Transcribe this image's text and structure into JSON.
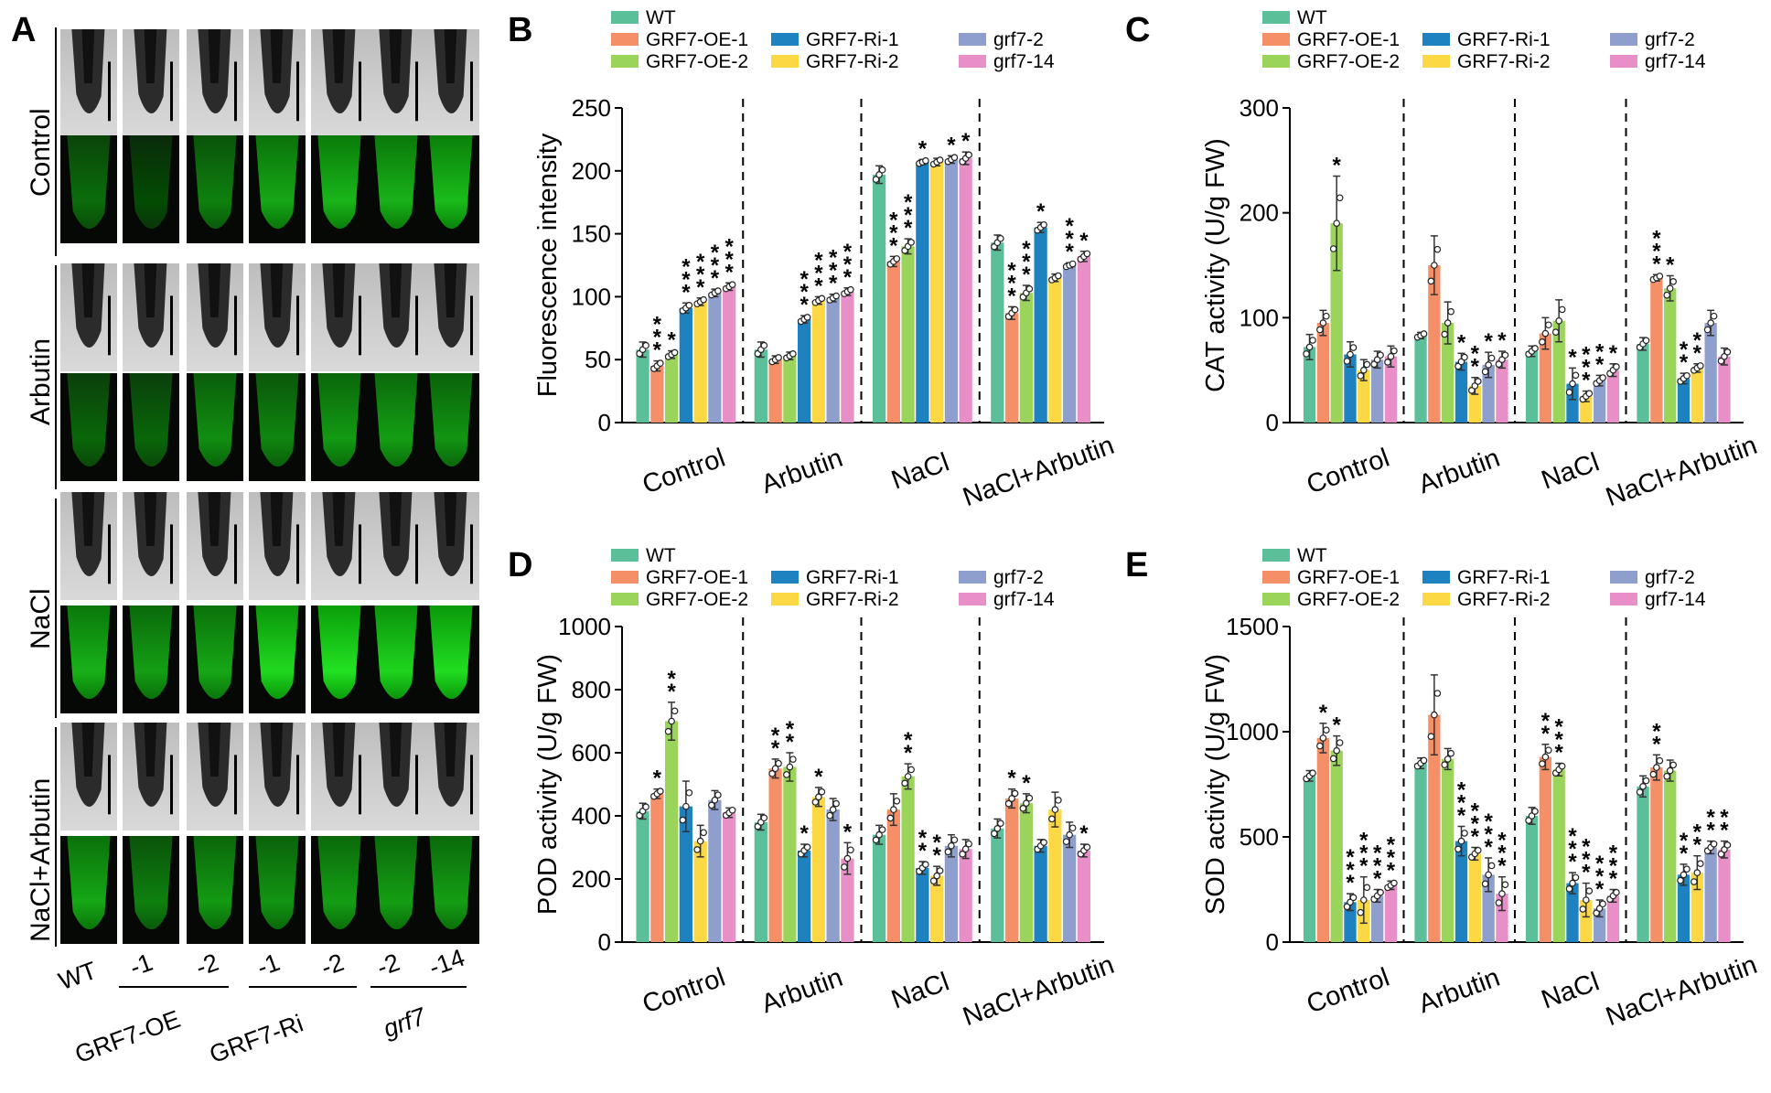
{
  "figure": {
    "panel_labels": [
      "A",
      "B",
      "C",
      "D",
      "E"
    ],
    "colors": {
      "WT": "#5bbf9a",
      "GRF7-OE-1": "#f58f67",
      "GRF7-OE-2": "#9bd45a",
      "GRF7-Ri-1": "#1f82c0",
      "GRF7-Ri-2": "#fbd844",
      "grf7-2": "#8e9fce",
      "grf7-14": "#e98fc7"
    }
  },
  "panelA": {
    "label": "A",
    "rows": [
      "Control",
      "Arbutin",
      "NaCl",
      "NaCl+Arbutin"
    ],
    "columns": {
      "WT": "WT",
      "sublabels": [
        "-1",
        "-2",
        "-1",
        "-2",
        "-2",
        "-14"
      ],
      "groups": [
        "GRF7-OE",
        "GRF7-Ri",
        "grf7"
      ]
    },
    "fluorescence_brightness": [
      [
        0.25,
        0.08,
        0.35,
        0.55,
        0.62,
        0.6,
        0.65
      ],
      [
        0.22,
        0.22,
        0.42,
        0.38,
        0.48,
        0.5,
        0.45
      ],
      [
        0.6,
        0.5,
        0.55,
        0.8,
        0.85,
        0.78,
        0.82
      ],
      [
        0.55,
        0.35,
        0.48,
        0.45,
        0.5,
        0.5,
        0.5
      ]
    ]
  },
  "chart_data": [
    {
      "id": "B",
      "type": "bar",
      "title": "",
      "ylabel": "Fluorescence intensity",
      "ylim": [
        0,
        250
      ],
      "yticks": [
        0,
        50,
        100,
        150,
        200,
        250
      ],
      "categories": [
        "Control",
        "Arbutin",
        "NaCl",
        "NaCl+Arbutin"
      ],
      "series": [
        {
          "name": "WT",
          "values": [
            58,
            58,
            197,
            143
          ],
          "errors": [
            6,
            6,
            7,
            6
          ],
          "sig": [
            "",
            "",
            "",
            ""
          ]
        },
        {
          "name": "GRF7-OE-1",
          "values": [
            45,
            50,
            128,
            87
          ],
          "errors": [
            4,
            3,
            4,
            5
          ],
          "sig": [
            "***",
            "",
            "***",
            "***"
          ]
        },
        {
          "name": "GRF7-OE-2",
          "values": [
            54,
            53,
            140,
            103
          ],
          "errors": [
            3,
            3,
            6,
            6
          ],
          "sig": [
            "*",
            "",
            "***",
            "***"
          ]
        },
        {
          "name": "GRF7-Ri-1",
          "values": [
            91,
            82,
            207,
            155
          ],
          "errors": [
            4,
            3,
            2,
            4
          ],
          "sig": [
            "***",
            "***",
            "*",
            "*"
          ]
        },
        {
          "name": "GRF7-Ri-2",
          "values": [
            96,
            97,
            207,
            115
          ],
          "errors": [
            3,
            3,
            3,
            3
          ],
          "sig": [
            "***",
            "***",
            "",
            ""
          ]
        },
        {
          "name": "grf7-2",
          "values": [
            103,
            99,
            209,
            125
          ],
          "errors": [
            3,
            3,
            3,
            2
          ],
          "sig": [
            "***",
            "***",
            "*",
            "***"
          ]
        },
        {
          "name": "grf7-14",
          "values": [
            108,
            104,
            210,
            132
          ],
          "errors": [
            3,
            3,
            5,
            4
          ],
          "sig": [
            "***",
            "***",
            "*",
            "*"
          ]
        }
      ]
    },
    {
      "id": "C",
      "type": "bar",
      "title": "",
      "ylabel": "CAT activity (U/g FW)",
      "ylim": [
        0,
        300
      ],
      "yticks": [
        0,
        100,
        200,
        300
      ],
      "categories": [
        "Control",
        "Arbutin",
        "NaCl",
        "NaCl+Arbutin"
      ],
      "series": [
        {
          "name": "WT",
          "values": [
            72,
            83,
            68,
            75
          ],
          "errors": [
            12,
            3,
            5,
            6
          ],
          "sig": [
            "",
            "",
            "",
            ""
          ]
        },
        {
          "name": "GRF7-OE-1",
          "values": [
            95,
            150,
            85,
            138
          ],
          "errors": [
            12,
            28,
            15,
            3
          ],
          "sig": [
            "",
            "",
            "",
            "***"
          ]
        },
        {
          "name": "GRF7-OE-2",
          "values": [
            190,
            95,
            97,
            128
          ],
          "errors": [
            45,
            20,
            20,
            12
          ],
          "sig": [
            "*",
            "",
            "",
            "*"
          ]
        },
        {
          "name": "GRF7-Ri-1",
          "values": [
            65,
            58,
            37,
            42
          ],
          "errors": [
            12,
            8,
            15,
            5
          ],
          "sig": [
            "",
            "*",
            "*",
            "**"
          ]
        },
        {
          "name": "GRF7-Ri-2",
          "values": [
            50,
            35,
            25,
            52
          ],
          "errors": [
            10,
            8,
            5,
            4
          ],
          "sig": [
            "",
            "**",
            "***",
            "**"
          ]
        },
        {
          "name": "grf7-2",
          "values": [
            60,
            55,
            40,
            95
          ],
          "errors": [
            8,
            12,
            5,
            12
          ],
          "sig": [
            "",
            "*",
            "**",
            ""
          ]
        },
        {
          "name": "grf7-14",
          "values": [
            63,
            60,
            50,
            63
          ],
          "errors": [
            10,
            8,
            6,
            8
          ],
          "sig": [
            "",
            "*",
            "*",
            ""
          ]
        }
      ]
    },
    {
      "id": "D",
      "type": "bar",
      "title": "",
      "ylabel": "POD activity (U/g FW)",
      "ylim": [
        0,
        1000
      ],
      "yticks": [
        0,
        200,
        400,
        600,
        800,
        1000
      ],
      "categories": [
        "Control",
        "Arbutin",
        "NaCl",
        "NaCl+Arbutin"
      ],
      "series": [
        {
          "name": "WT",
          "values": [
            415,
            380,
            340,
            360
          ],
          "errors": [
            25,
            25,
            30,
            30
          ],
          "sig": [
            "",
            "",
            "",
            ""
          ]
        },
        {
          "name": "GRF7-OE-1",
          "values": [
            470,
            550,
            420,
            455
          ],
          "errors": [
            15,
            30,
            50,
            30
          ],
          "sig": [
            "*",
            "**",
            "",
            "*"
          ]
        },
        {
          "name": "GRF7-OE-2",
          "values": [
            700,
            555,
            525,
            440
          ],
          "errors": [
            60,
            45,
            40,
            30
          ],
          "sig": [
            "**",
            "**",
            "**",
            "*"
          ]
        },
        {
          "name": "GRF7-Ri-1",
          "values": [
            430,
            290,
            235,
            305
          ],
          "errors": [
            80,
            20,
            20,
            20
          ],
          "sig": [
            "",
            "*",
            "**",
            ""
          ]
        },
        {
          "name": "GRF7-Ri-2",
          "values": [
            320,
            460,
            210,
            420
          ],
          "errors": [
            50,
            30,
            30,
            55
          ],
          "sig": [
            "",
            "*",
            "**",
            ""
          ]
        },
        {
          "name": "grf7-2",
          "values": [
            450,
            420,
            305,
            340
          ],
          "errors": [
            30,
            35,
            35,
            40
          ],
          "sig": [
            "",
            "",
            "",
            ""
          ]
        },
        {
          "name": "grf7-14",
          "values": [
            410,
            265,
            295,
            290
          ],
          "errors": [
            15,
            50,
            30,
            20
          ],
          "sig": [
            "",
            "*",
            "",
            "*"
          ]
        }
      ]
    },
    {
      "id": "E",
      "type": "bar",
      "title": "",
      "ylabel": "SOD activity (U/g FW)",
      "ylim": [
        0,
        1500
      ],
      "yticks": [
        0,
        500,
        1000,
        1500
      ],
      "categories": [
        "Control",
        "Arbutin",
        "NaCl",
        "NaCl+Arbutin"
      ],
      "series": [
        {
          "name": "WT",
          "values": [
            790,
            850,
            600,
            740
          ],
          "errors": [
            25,
            25,
            40,
            50
          ],
          "sig": [
            "",
            "",
            "",
            ""
          ]
        },
        {
          "name": "GRF7-OE-1",
          "values": [
            970,
            1080,
            880,
            830
          ],
          "errors": [
            70,
            190,
            60,
            60
          ],
          "sig": [
            "*",
            "",
            "**",
            "**"
          ]
        },
        {
          "name": "GRF7-OE-2",
          "values": [
            910,
            870,
            820,
            815
          ],
          "errors": [
            70,
            50,
            30,
            50
          ],
          "sig": [
            "*",
            "",
            "***",
            ""
          ]
        },
        {
          "name": "GRF7-Ri-1",
          "values": [
            190,
            480,
            280,
            320
          ],
          "errors": [
            40,
            70,
            50,
            50
          ],
          "sig": [
            "***",
            "***",
            "***",
            "**"
          ]
        },
        {
          "name": "GRF7-Ri-2",
          "values": [
            200,
            420,
            200,
            330
          ],
          "errors": [
            110,
            30,
            80,
            80
          ],
          "sig": [
            "***",
            "***",
            "***",
            "**"
          ]
        },
        {
          "name": "grf7-2",
          "values": [
            220,
            320,
            160,
            450
          ],
          "errors": [
            30,
            80,
            40,
            30
          ],
          "sig": [
            "***",
            "***",
            "***",
            "**"
          ]
        },
        {
          "name": "grf7-14",
          "values": [
            270,
            230,
            220,
            440
          ],
          "errors": [
            20,
            80,
            30,
            40
          ],
          "sig": [
            "***",
            "***",
            "***",
            "**"
          ]
        }
      ]
    }
  ]
}
